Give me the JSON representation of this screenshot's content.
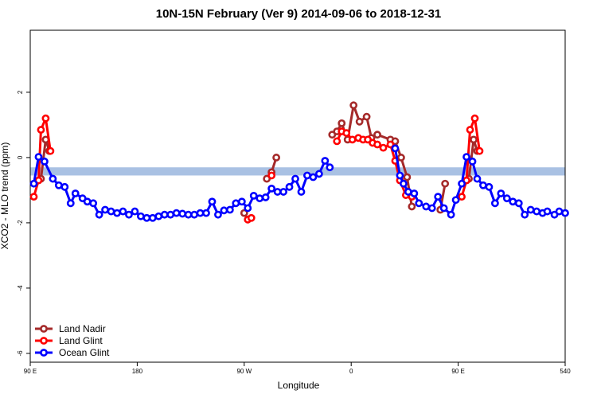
{
  "chart_data": {
    "type": "line",
    "title": "10N-15N February (Ver 9)   2014-09-06 to 2018-12-31",
    "x_label": "Longitude",
    "y_label": "XCO2 - MLO trend (ppm)",
    "xlim": [
      90,
      540
    ],
    "ylim": [
      -6.27,
      3.9
    ],
    "xticks": [
      {
        "value": 90,
        "label": "90 E"
      },
      180,
      {
        "value": 270,
        "label": "90 W"
      },
      {
        "value": 360,
        "label": "0"
      },
      {
        "value": 450,
        "label": "90 E"
      },
      540
    ],
    "yticks": [
      -6,
      -4,
      -2,
      0,
      2
    ],
    "band": [
      -0.55,
      -0.3
    ],
    "band_color": "#a9c1e3",
    "legend": "bottom-left",
    "series": [
      {
        "name": "Land Nadir",
        "color": "#a52a2a",
        "x": [
          99,
          103,
          106,
          null,
          270,
          null,
          289,
          293,
          297,
          null,
          344,
          348,
          352,
          357,
          362,
          367,
          373,
          377,
          382,
          393,
          397,
          402,
          407,
          411,
          null,
          435,
          439,
          null,
          459,
          463,
          466
        ],
        "values": [
          -0.65,
          0.55,
          0.2,
          null,
          -1.7,
          null,
          -0.65,
          -0.45,
          0,
          null,
          0.7,
          0.8,
          1.05,
          0.55,
          1.6,
          1.1,
          1.25,
          0.6,
          0.7,
          0.55,
          0.5,
          0,
          -0.6,
          -1.5,
          null,
          -1.6,
          -0.8,
          null,
          -0.65,
          0.55,
          0.2
        ]
      },
      {
        "name": "Land Glint",
        "color": "#ff0000",
        "x": [
          93,
          97,
          99,
          103,
          107,
          null,
          273,
          276,
          null,
          293,
          null,
          348,
          352,
          356,
          361,
          366,
          370,
          374,
          378,
          382,
          387,
          393,
          397,
          401,
          406,
          411,
          null,
          453,
          457,
          460,
          464,
          468
        ],
        "values": [
          -1.2,
          -0.7,
          0.85,
          1.2,
          0.2,
          null,
          -1.9,
          -1.85,
          null,
          -0.55,
          null,
          0.5,
          0.8,
          0.75,
          0.55,
          0.6,
          0.55,
          0.55,
          0.45,
          0.4,
          0.3,
          0.4,
          -0.1,
          -0.7,
          -1.15,
          -1.2,
          null,
          -1.2,
          -0.7,
          0.85,
          1.2,
          0.2
        ]
      },
      {
        "name": "Ocean Glint",
        "color": "#0000ff",
        "x": [
          93,
          97,
          102,
          109,
          114,
          119,
          124,
          128,
          134,
          138,
          143,
          148,
          153,
          158,
          163,
          168,
          173,
          178,
          183,
          188,
          193,
          198,
          203,
          208,
          213,
          218,
          223,
          228,
          233,
          238,
          243,
          248,
          253,
          258,
          263,
          268,
          273,
          278,
          283,
          288,
          293,
          298,
          303,
          308,
          313,
          318,
          323,
          328,
          333,
          338,
          342,
          null,
          397,
          401,
          404,
          408,
          413,
          417,
          423,
          428,
          433,
          438,
          444,
          448,
          453,
          457,
          462,
          466,
          471,
          476,
          481,
          486,
          491,
          496,
          501,
          506,
          511,
          516,
          521,
          525,
          531,
          535,
          540
        ],
        "values": [
          -0.8,
          0.02,
          -0.12,
          -0.65,
          -0.85,
          -0.9,
          -1.4,
          -1.1,
          -1.25,
          -1.35,
          -1.4,
          -1.75,
          -1.6,
          -1.65,
          -1.7,
          -1.65,
          -1.75,
          -1.65,
          -1.8,
          -1.85,
          -1.85,
          -1.8,
          -1.75,
          -1.75,
          -1.7,
          -1.72,
          -1.75,
          -1.75,
          -1.7,
          -1.7,
          -1.35,
          -1.75,
          -1.62,
          -1.6,
          -1.4,
          -1.35,
          -1.55,
          -1.17,
          -1.25,
          -1.22,
          -0.95,
          -1.05,
          -1.05,
          -0.9,
          -0.65,
          -1.05,
          -0.55,
          -0.6,
          -0.5,
          -0.1,
          -0.3,
          null,
          0.28,
          -0.55,
          -0.8,
          -1.05,
          -1.1,
          -1.4,
          -1.5,
          -1.55,
          -1.2,
          -1.55,
          -1.75,
          -1.3,
          -0.8,
          0.02,
          -0.12,
          -0.65,
          -0.85,
          -0.9,
          -1.4,
          -1.1,
          -1.25,
          -1.35,
          -1.4,
          -1.75,
          -1.6,
          -1.65,
          -1.7,
          -1.65,
          -1.75,
          -1.65,
          -1.7
        ]
      }
    ]
  }
}
